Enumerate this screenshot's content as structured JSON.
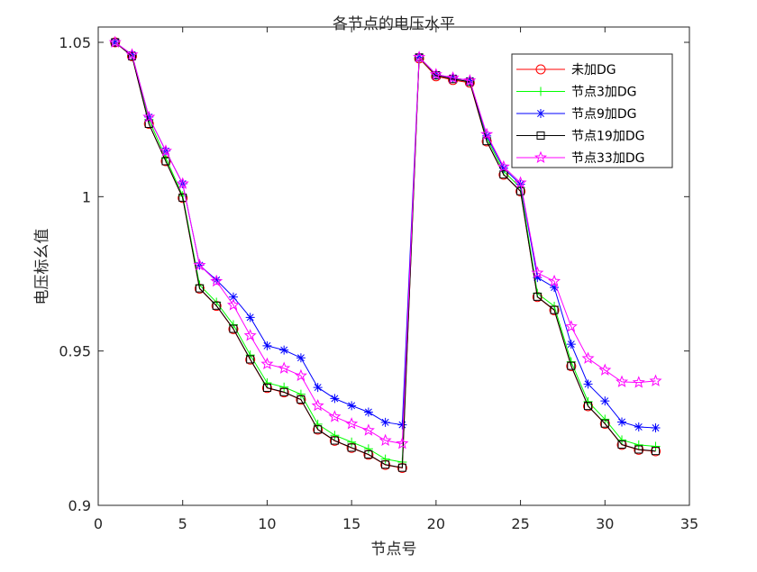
{
  "chart_data": {
    "type": "line",
    "title": "各节点的电压水平",
    "xlabel": "节点号",
    "ylabel": "电压标幺值",
    "xlim": [
      0,
      35
    ],
    "ylim": [
      0.9,
      1.05
    ],
    "xticks": [
      0,
      5,
      10,
      15,
      20,
      25,
      30,
      35
    ],
    "xtick_labels": [
      "0",
      "5",
      "10",
      "15",
      "20",
      "25",
      "30",
      "35"
    ],
    "yticks": [
      0.9,
      0.95,
      1.0,
      1.05
    ],
    "ytick_labels": [
      "0.9",
      "0.95",
      "1",
      "1.05"
    ],
    "grid": false,
    "legend_position": "top-right",
    "x": [
      1,
      2,
      3,
      4,
      5,
      6,
      7,
      8,
      9,
      10,
      11,
      12,
      13,
      14,
      15,
      16,
      17,
      18,
      19,
      20,
      21,
      22,
      23,
      24,
      25,
      26,
      27,
      28,
      29,
      30,
      31,
      32,
      33
    ],
    "series": [
      {
        "name": "未加DG",
        "color": "#ff0000",
        "marker": "circle",
        "values": [
          1.05,
          1.0455,
          1.0236,
          1.0115,
          0.9996,
          0.9702,
          0.9646,
          0.9571,
          0.9472,
          0.938,
          0.9366,
          0.9342,
          0.9245,
          0.9209,
          0.9186,
          0.9164,
          0.9131,
          0.9121,
          1.0448,
          1.039,
          1.0378,
          1.0369,
          1.0179,
          1.0071,
          1.0017,
          0.9675,
          0.9632,
          0.9451,
          0.9321,
          0.9264,
          0.9196,
          0.918,
          0.9175
        ]
      },
      {
        "name": "节点3加DG",
        "color": "#00ff00",
        "marker": "plus",
        "values": [
          1.05,
          1.0457,
          1.025,
          1.0125,
          1.0003,
          0.9714,
          0.9658,
          0.9585,
          0.9487,
          0.9397,
          0.9383,
          0.936,
          0.9263,
          0.9227,
          0.9205,
          0.9183,
          0.915,
          0.914,
          1.045,
          1.0393,
          1.0382,
          1.0372,
          1.019,
          1.0082,
          1.0029,
          0.9687,
          0.9645,
          0.9465,
          0.9336,
          0.9279,
          0.9212,
          0.9196,
          0.9191
        ]
      },
      {
        "name": "节点9加DG",
        "color": "#0000ff",
        "marker": "star",
        "values": [
          1.05,
          1.046,
          1.0258,
          1.0148,
          1.0042,
          0.9778,
          0.973,
          0.9675,
          0.9609,
          0.9517,
          0.9503,
          0.9478,
          0.9382,
          0.9346,
          0.9323,
          0.9302,
          0.9269,
          0.9261,
          1.0452,
          1.0396,
          1.0385,
          1.0376,
          1.0197,
          1.0092,
          1.004,
          0.9738,
          0.9706,
          0.9522,
          0.9393,
          0.9338,
          0.927,
          0.9254,
          0.9251
        ]
      },
      {
        "name": "节点19加DG",
        "color": "#000000",
        "marker": "square",
        "values": [
          1.05,
          1.0455,
          1.0236,
          1.0115,
          0.9997,
          0.9703,
          0.9647,
          0.9572,
          0.9473,
          0.9381,
          0.9367,
          0.9343,
          0.9246,
          0.921,
          0.9187,
          0.9165,
          0.9132,
          0.9122,
          1.0451,
          1.0393,
          1.0381,
          1.0372,
          1.018,
          1.0072,
          1.0018,
          0.9676,
          0.9633,
          0.9452,
          0.9322,
          0.9265,
          0.9197,
          0.9181,
          0.9176
        ]
      },
      {
        "name": "节点33加DG",
        "color": "#ff00ff",
        "marker": "pentagram",
        "values": [
          1.05,
          1.046,
          1.0258,
          1.0148,
          1.0042,
          0.9778,
          0.9726,
          0.9649,
          0.955,
          0.9458,
          0.9444,
          0.942,
          0.9323,
          0.9287,
          0.9264,
          0.9243,
          0.921,
          0.92,
          1.0452,
          1.0396,
          1.0385,
          1.0376,
          1.0202,
          1.0097,
          1.0045,
          0.9753,
          0.9726,
          0.9579,
          0.9476,
          0.9438,
          0.94,
          0.9398,
          0.9403
        ]
      }
    ]
  }
}
